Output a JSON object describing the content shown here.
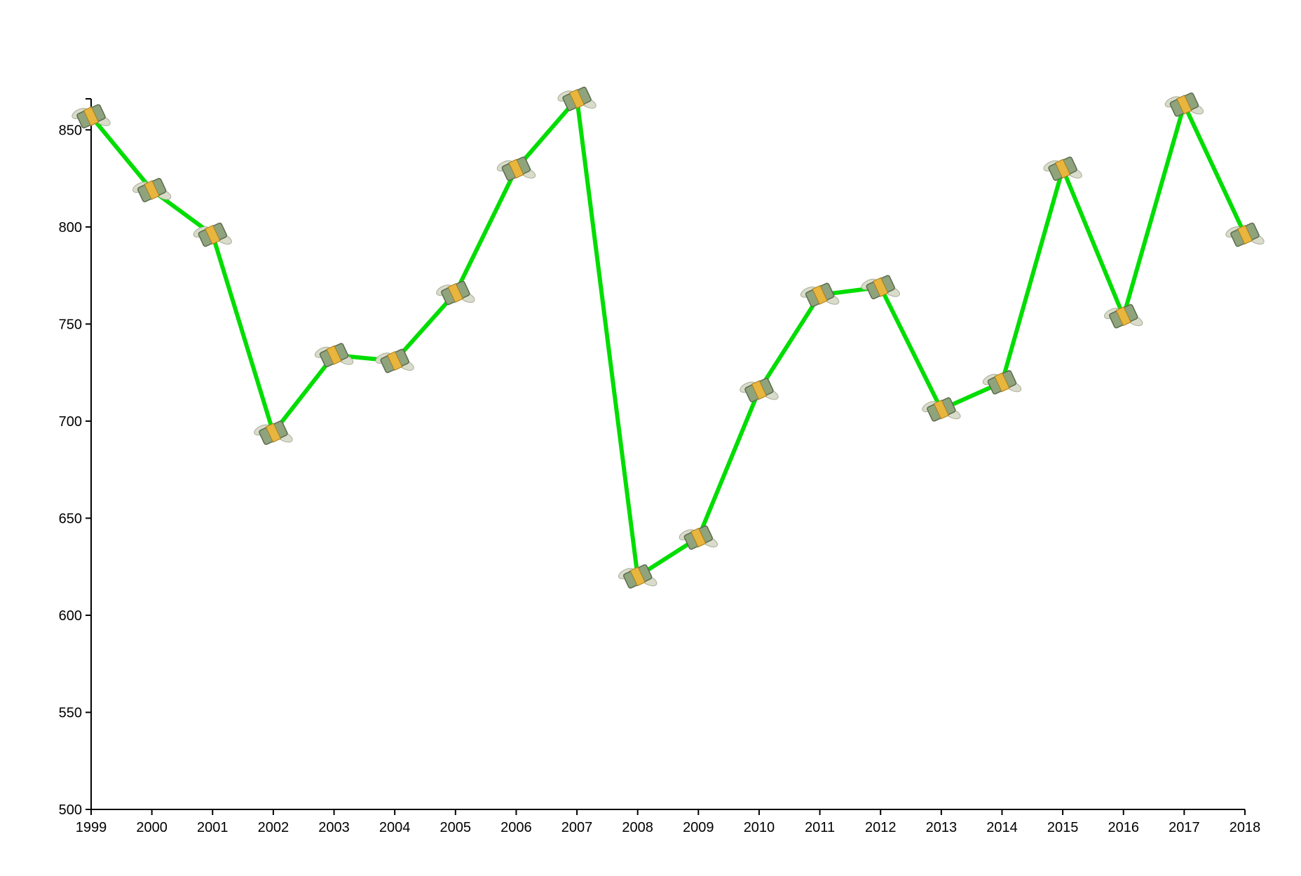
{
  "chart_data": {
    "type": "line",
    "x": [
      1999,
      2000,
      2001,
      2002,
      2003,
      2004,
      2005,
      2006,
      2007,
      2008,
      2009,
      2010,
      2011,
      2012,
      2013,
      2014,
      2015,
      2016,
      2017,
      2018
    ],
    "series": [
      {
        "color": "#00dd00",
        "values": [
          857,
          819,
          796,
          694,
          734,
          731,
          766,
          830,
          866,
          620,
          640,
          716,
          765,
          769,
          706,
          720,
          830,
          754,
          863,
          796
        ]
      }
    ],
    "xlim": [
      1999,
      2018
    ],
    "xticks": [
      1999,
      2000,
      2001,
      2002,
      2003,
      2004,
      2005,
      2006,
      2007,
      2008,
      2009,
      2010,
      2011,
      2012,
      2013,
      2014,
      2015,
      2016,
      2017,
      2018
    ],
    "ylim": [
      500,
      866
    ],
    "yticks": [
      500,
      550,
      600,
      650,
      700,
      750,
      800,
      850
    ],
    "grid": false
  }
}
